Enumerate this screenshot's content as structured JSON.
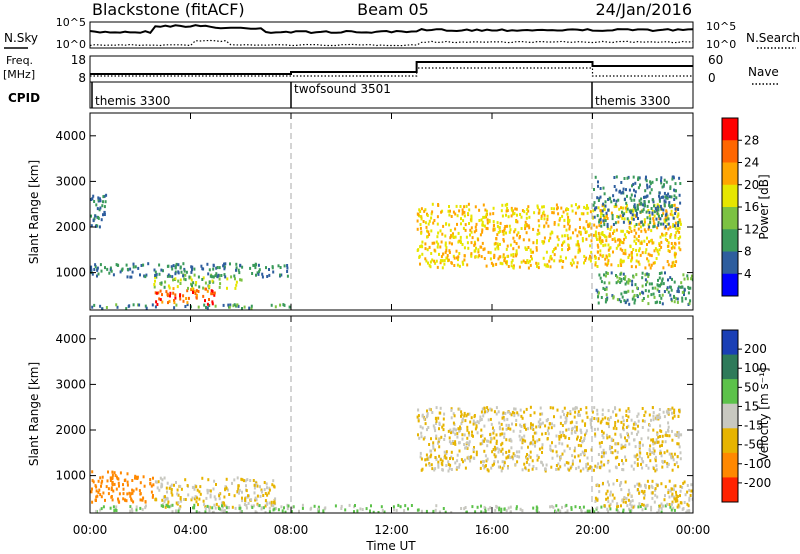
{
  "header": {
    "station": "Blackstone (fitACF)",
    "beam": "Beam 05",
    "date": "24/Jan/2016"
  },
  "top_panels": {
    "noise": {
      "left_label": "N.Sky",
      "left_ticks": [
        "10^5",
        "10^0"
      ],
      "right_label": "N.Search",
      "right_ticks": [
        "10^5",
        "10^0"
      ]
    },
    "freq": {
      "left_label_line1": "Freq.",
      "left_label_line2": "[MHz]",
      "left_ticks": [
        "18",
        "8"
      ],
      "right_label": "Nave",
      "right_ticks": [
        "60",
        "0"
      ]
    },
    "cpid": {
      "label": "CPID",
      "segments": [
        {
          "label": "themis 3300",
          "start_hour": 0,
          "end_hour": 8
        },
        {
          "label": "twofsound 3501",
          "start_hour": 8,
          "end_hour": 20
        },
        {
          "label": "themis 3300",
          "start_hour": 20,
          "end_hour": 24
        }
      ]
    }
  },
  "power_panel": {
    "ylabel": "Slant Range [km]",
    "colorbar_label": "Power [dB]",
    "colorbar_ticks": [
      "28",
      "24",
      "20",
      "16",
      "12",
      "8",
      "4"
    ],
    "colors": [
      "#ff0000",
      "#ff6600",
      "#ffa500",
      "#e6e600",
      "#7cc242",
      "#3a9a5a",
      "#2e5e9e",
      "#0000ff"
    ]
  },
  "velocity_panel": {
    "ylabel": "Slant Range [km]",
    "colorbar_label": "Velocity [m s⁻¹]",
    "colorbar_ticks": [
      "200",
      "100",
      "50",
      "15",
      "-15",
      "-50",
      "-100",
      "-200"
    ],
    "colors": [
      "#1a3fb5",
      "#2e7a5a",
      "#5cc24a",
      "#c8c8c0",
      "#e6b400",
      "#ff8800",
      "#ff2200"
    ]
  },
  "xaxis": {
    "label": "Time UT",
    "ticks": [
      "00:00",
      "04:00",
      "08:00",
      "12:00",
      "16:00",
      "20:00",
      "00:00"
    ]
  },
  "chart_data": [
    {
      "type": "heatmap",
      "title": "Power",
      "ylabel": "Slant Range [km]",
      "xlabel": "",
      "x_range_hours": [
        0,
        24
      ],
      "ylim": [
        180,
        4500
      ],
      "yticks": [
        1000,
        2000,
        3000,
        4000
      ],
      "colorbar": {
        "label": "Power [dB]",
        "ticks": [
          4,
          8,
          12,
          16,
          20,
          24,
          28
        ]
      },
      "features": [
        {
          "t_start": 0,
          "t_end": 8,
          "r_start": 200,
          "r_end": 300,
          "value_db": 10
        },
        {
          "t_start": 2.5,
          "t_end": 5.2,
          "r_start": 300,
          "r_end": 650,
          "value_db": 26
        },
        {
          "t_start": 2.5,
          "t_end": 6,
          "r_start": 650,
          "r_end": 950,
          "value_db": 14
        },
        {
          "t_start": 0,
          "t_end": 8,
          "r_start": 900,
          "r_end": 1200,
          "value_db": 8
        },
        {
          "t_start": 0,
          "t_end": 0.6,
          "r_start": 2000,
          "r_end": 2700,
          "value_db": 8
        },
        {
          "t_start": 13,
          "t_end": 23.5,
          "r_start": 1100,
          "r_end": 2500,
          "value_db": 20
        },
        {
          "t_start": 20,
          "t_end": 23.5,
          "r_start": 2000,
          "r_end": 3100,
          "value_db": 8
        },
        {
          "t_start": 20,
          "t_end": 24,
          "r_start": 300,
          "r_end": 1000,
          "value_db": 10
        }
      ]
    },
    {
      "type": "heatmap",
      "title": "Velocity",
      "ylabel": "Slant Range [km]",
      "xlabel": "Time UT",
      "x_range_hours": [
        0,
        24
      ],
      "ylim": [
        180,
        4500
      ],
      "yticks": [
        1000,
        2000,
        3000,
        4000
      ],
      "colorbar": {
        "label": "Velocity [m s⁻¹]",
        "ticks": [
          -200,
          -100,
          -50,
          -15,
          15,
          50,
          100,
          200
        ]
      },
      "features": [
        {
          "t_start": 2.5,
          "t_end": 7.5,
          "r_start": 300,
          "r_end": 950,
          "value_ms": 0
        },
        {
          "t_start": 0,
          "t_end": 2.5,
          "r_start": 400,
          "r_end": 1100,
          "value_ms": -50
        },
        {
          "t_start": 13,
          "t_end": 23.5,
          "r_start": 1100,
          "r_end": 2500,
          "value_ms": 0
        },
        {
          "t_start": 0,
          "t_end": 24,
          "r_start": 180,
          "r_end": 350,
          "value_ms": 30
        },
        {
          "t_start": 20,
          "t_end": 24,
          "r_start": 300,
          "r_end": 900,
          "value_ms": 0
        }
      ]
    }
  ]
}
